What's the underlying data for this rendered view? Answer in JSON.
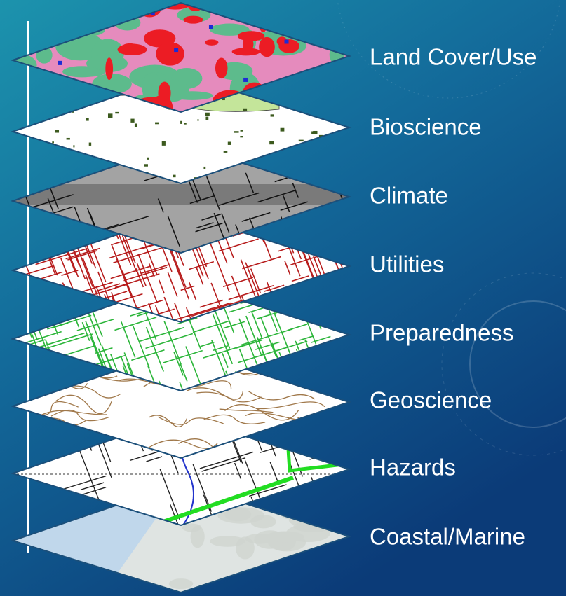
{
  "layers": [
    {
      "label": "Land Cover/Use"
    },
    {
      "label": "Bioscience"
    },
    {
      "label": "Climate"
    },
    {
      "label": "Utilities"
    },
    {
      "label": "Preparedness"
    },
    {
      "label": "Geoscience"
    },
    {
      "label": "Hazards"
    },
    {
      "label": "Coastal/Marine"
    }
  ]
}
